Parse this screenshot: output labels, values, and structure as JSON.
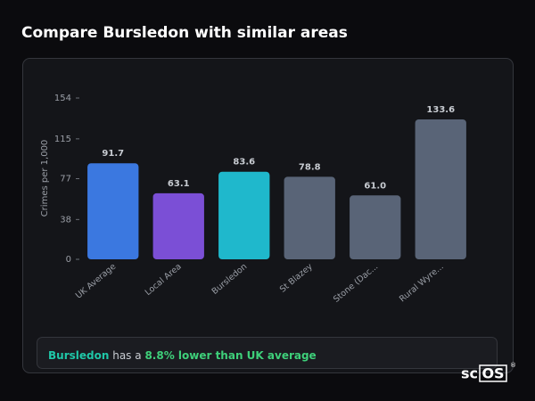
{
  "header": {
    "title": "Compare Bursledon with similar areas"
  },
  "chart_data": {
    "type": "bar",
    "y_label": "Crimes per 1,000",
    "categories": [
      "UK Average",
      "Local Area",
      "Bursledon",
      "St Blazey",
      "Stone (Dac...",
      "Rural Wyre..."
    ],
    "values": [
      91.7,
      63.1,
      83.6,
      78.8,
      61.0,
      133.6
    ],
    "value_labels": [
      "91.7",
      "63.1",
      "83.6",
      "78.8",
      "61.0",
      "133.6"
    ],
    "colors": [
      "#3b78e0",
      "#7b4fd6",
      "#1fb8cc",
      "#596477",
      "#596477",
      "#596477"
    ],
    "ylim": [
      0,
      154
    ],
    "yticks": [
      0,
      38,
      77,
      115,
      154
    ]
  },
  "summary": {
    "area": "Bursledon",
    "middle": "has a",
    "highlight": "8.8% lower than UK average"
  },
  "logo": {
    "text": "sc",
    "boxed": "OS",
    "mark": "®"
  }
}
